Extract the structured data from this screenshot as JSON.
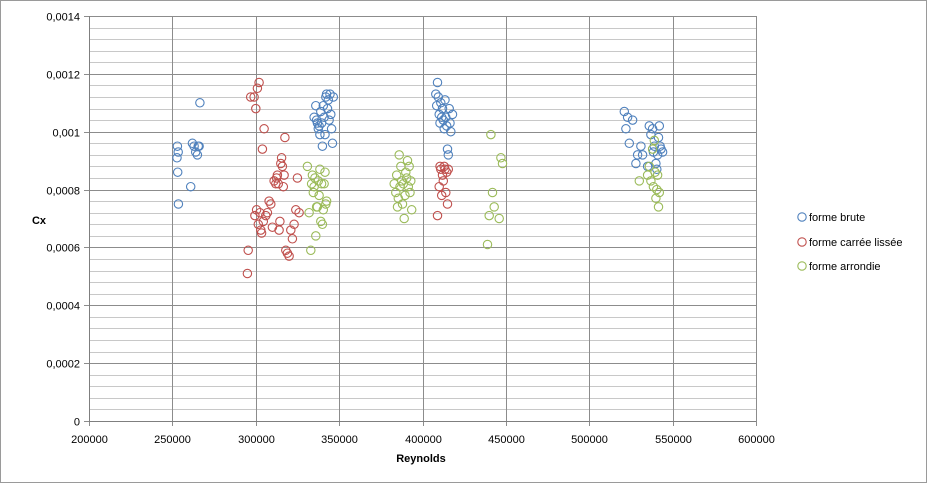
{
  "chart_data": {
    "type": "scatter",
    "xlabel": "Reynolds",
    "ylabel": "Cx",
    "xlim": [
      200000,
      600000
    ],
    "ylim": [
      0,
      0.0014
    ],
    "x_ticks": [
      "200000",
      "250000",
      "300000",
      "350000",
      "400000",
      "450000",
      "500000",
      "550000",
      "600000"
    ],
    "y_ticks": [
      "0",
      "0,0002",
      "0,0004",
      "0,0006",
      "0,0008",
      "0,001",
      "0,0012",
      "0,0014"
    ],
    "grid": "major and minor horizontal, major vertical",
    "legend_position": "right",
    "marker": "open circle",
    "series": [
      {
        "name": "forme brute",
        "color": "#4F81BD",
        "points": [
          [
            253000,
            0.00095
          ],
          [
            253500,
            0.00093
          ],
          [
            252800,
            0.00091
          ],
          [
            253200,
            0.00086
          ],
          [
            253600,
            0.00075
          ],
          [
            261000,
            0.00081
          ],
          [
            262000,
            0.00096
          ],
          [
            263000,
            0.00095
          ],
          [
            264000,
            0.00093
          ],
          [
            265000,
            0.00092
          ],
          [
            265500,
            0.00095
          ],
          [
            266000,
            0.00095
          ],
          [
            266500,
            0.0011
          ],
          [
            335000,
            0.00105
          ],
          [
            336000,
            0.00109
          ],
          [
            336500,
            0.00104
          ],
          [
            337000,
            0.00103
          ],
          [
            337500,
            0.00101
          ],
          [
            338000,
            0.00102
          ],
          [
            338500,
            0.00099
          ],
          [
            339000,
            0.00107
          ],
          [
            339500,
            0.00103
          ],
          [
            340000,
            0.00095
          ],
          [
            340500,
            0.00109
          ],
          [
            341000,
            0.00105
          ],
          [
            341500,
            0.00099
          ],
          [
            342000,
            0.00112
          ],
          [
            342500,
            0.00113
          ],
          [
            343000,
            0.00108
          ],
          [
            343500,
            0.00111
          ],
          [
            344000,
            0.00104
          ],
          [
            344500,
            0.00113
          ],
          [
            345000,
            0.00106
          ],
          [
            345500,
            0.00101
          ],
          [
            346000,
            0.00096
          ],
          [
            346500,
            0.00112
          ],
          [
            408000,
            0.00113
          ],
          [
            408500,
            0.00109
          ],
          [
            409000,
            0.00117
          ],
          [
            409500,
            0.00112
          ],
          [
            410000,
            0.00106
          ],
          [
            410500,
            0.00103
          ],
          [
            411000,
            0.0011
          ],
          [
            411500,
            0.00105
          ],
          [
            412000,
            0.00108
          ],
          [
            412500,
            0.00104
          ],
          [
            413000,
            0.00101
          ],
          [
            413500,
            0.00111
          ],
          [
            414000,
            0.00105
          ],
          [
            414500,
            0.00102
          ],
          [
            415000,
            0.00094
          ],
          [
            415500,
            0.00092
          ],
          [
            416000,
            0.00108
          ],
          [
            416500,
            0.00103
          ],
          [
            417000,
            0.001
          ],
          [
            418000,
            0.00106
          ],
          [
            521000,
            0.00107
          ],
          [
            522000,
            0.00101
          ],
          [
            523000,
            0.00105
          ],
          [
            524000,
            0.00096
          ],
          [
            526000,
            0.00104
          ],
          [
            528000,
            0.00089
          ],
          [
            529000,
            0.00092
          ],
          [
            531000,
            0.00095
          ],
          [
            532000,
            0.00092
          ],
          [
            535000,
            0.00088
          ],
          [
            536000,
            0.00102
          ],
          [
            537000,
            0.00099
          ],
          [
            538000,
            0.00101
          ],
          [
            538500,
            0.00093
          ],
          [
            539000,
            0.00095
          ],
          [
            540000,
            0.00089
          ],
          [
            540500,
            0.00087
          ],
          [
            541000,
            0.00092
          ],
          [
            541500,
            0.00098
          ],
          [
            542000,
            0.00102
          ],
          [
            542500,
            0.00095
          ],
          [
            543000,
            0.00094
          ],
          [
            544000,
            0.00093
          ]
        ]
      },
      {
        "name": "forme carrée lissée",
        "color": "#C0504D",
        "points": [
          [
            295000,
            0.00051
          ],
          [
            295500,
            0.00059
          ],
          [
            297000,
            0.00112
          ],
          [
            299000,
            0.00112
          ],
          [
            299500,
            0.00071
          ],
          [
            300000,
            0.00108
          ],
          [
            300500,
            0.00073
          ],
          [
            301000,
            0.00115
          ],
          [
            301500,
            0.00068
          ],
          [
            302000,
            0.00117
          ],
          [
            302500,
            0.00072
          ],
          [
            303000,
            0.00066
          ],
          [
            303500,
            0.00065
          ],
          [
            304000,
            0.00094
          ],
          [
            304500,
            0.00069
          ],
          [
            305000,
            0.00101
          ],
          [
            306000,
            0.00071
          ],
          [
            307000,
            0.00072
          ],
          [
            308000,
            0.00076
          ],
          [
            309000,
            0.00075
          ],
          [
            310000,
            0.00067
          ],
          [
            311000,
            0.00083
          ],
          [
            312000,
            0.00082
          ],
          [
            312500,
            0.00084
          ],
          [
            313000,
            0.00085
          ],
          [
            313500,
            0.00082
          ],
          [
            314000,
            0.00066
          ],
          [
            314500,
            0.00069
          ],
          [
            315000,
            0.00089
          ],
          [
            315500,
            0.00091
          ],
          [
            316000,
            0.00088
          ],
          [
            316500,
            0.00081
          ],
          [
            317000,
            0.00085
          ],
          [
            317500,
            0.00098
          ],
          [
            318000,
            0.00059
          ],
          [
            319000,
            0.00058
          ],
          [
            320000,
            0.00057
          ],
          [
            321000,
            0.00066
          ],
          [
            322000,
            0.00063
          ],
          [
            323000,
            0.00068
          ],
          [
            324000,
            0.00073
          ],
          [
            325000,
            0.00084
          ],
          [
            326000,
            0.00072
          ],
          [
            409000,
            0.00071
          ],
          [
            410000,
            0.00081
          ],
          [
            410500,
            0.00088
          ],
          [
            411000,
            0.00087
          ],
          [
            411500,
            0.00078
          ],
          [
            412000,
            0.00085
          ],
          [
            412500,
            0.00083
          ],
          [
            413000,
            0.00088
          ],
          [
            413500,
            0.00087
          ],
          [
            414000,
            0.00079
          ],
          [
            414500,
            0.00086
          ],
          [
            415000,
            0.00075
          ],
          [
            415500,
            0.00087
          ]
        ]
      },
      {
        "name": "forme arrondie",
        "color": "#9BBB59",
        "points": [
          [
            331000,
            0.00088
          ],
          [
            332000,
            0.00072
          ],
          [
            333000,
            0.00059
          ],
          [
            333500,
            0.00082
          ],
          [
            334000,
            0.00085
          ],
          [
            334500,
            0.00079
          ],
          [
            335000,
            0.00081
          ],
          [
            335500,
            0.00084
          ],
          [
            336000,
            0.00064
          ],
          [
            336500,
            0.00074
          ],
          [
            337000,
            0.00074
          ],
          [
            337500,
            0.00083
          ],
          [
            338000,
            0.00078
          ],
          [
            338500,
            0.00087
          ],
          [
            339000,
            0.00069
          ],
          [
            339500,
            0.00082
          ],
          [
            340000,
            0.00068
          ],
          [
            340500,
            0.00073
          ],
          [
            341000,
            0.00082
          ],
          [
            341500,
            0.00086
          ],
          [
            342000,
            0.00075
          ],
          [
            342500,
            0.00076
          ],
          [
            383000,
            0.00082
          ],
          [
            384000,
            0.00079
          ],
          [
            384500,
            0.00085
          ],
          [
            385000,
            0.00074
          ],
          [
            385500,
            0.00077
          ],
          [
            386000,
            0.00092
          ],
          [
            386500,
            0.00081
          ],
          [
            387000,
            0.00088
          ],
          [
            387500,
            0.00083
          ],
          [
            388000,
            0.00075
          ],
          [
            388500,
            0.00082
          ],
          [
            389000,
            0.0007
          ],
          [
            389500,
            0.00078
          ],
          [
            390000,
            0.00086
          ],
          [
            390500,
            0.00084
          ],
          [
            391000,
            0.0009
          ],
          [
            391500,
            0.00081
          ],
          [
            392000,
            0.00088
          ],
          [
            392500,
            0.00079
          ],
          [
            393000,
            0.00083
          ],
          [
            393500,
            0.00073
          ],
          [
            439000,
            0.00061
          ],
          [
            440000,
            0.00071
          ],
          [
            441000,
            0.00099
          ],
          [
            442000,
            0.00079
          ],
          [
            443000,
            0.00074
          ],
          [
            446000,
            0.0007
          ],
          [
            447000,
            0.00091
          ],
          [
            448000,
            0.00089
          ],
          [
            530000,
            0.00083
          ],
          [
            535000,
            0.00085
          ],
          [
            536000,
            0.00088
          ],
          [
            537000,
            0.00083
          ],
          [
            538000,
            0.00094
          ],
          [
            538500,
            0.00081
          ],
          [
            539000,
            0.00097
          ],
          [
            539500,
            0.00086
          ],
          [
            540000,
            0.00077
          ],
          [
            540500,
            0.0008
          ],
          [
            541000,
            0.00085
          ],
          [
            541500,
            0.00074
          ],
          [
            542000,
            0.00079
          ]
        ]
      }
    ]
  }
}
